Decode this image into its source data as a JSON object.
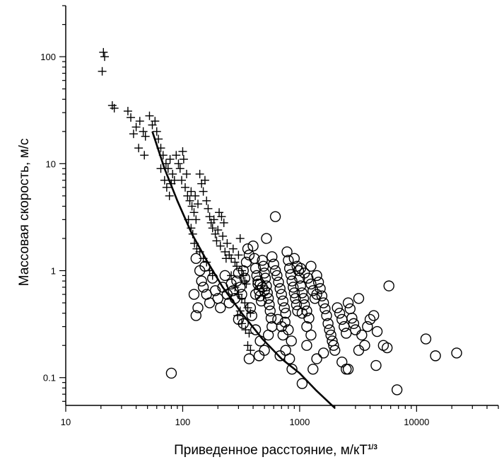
{
  "chart_data": {
    "type": "scatter",
    "x_scale": "log",
    "y_scale": "log",
    "xlim": [
      10,
      50000
    ],
    "ylim": [
      0.055,
      300
    ],
    "grid": false,
    "xlabel_main": "Приведенное расстояние, м/кТ",
    "xlabel_sup": "1/3",
    "ylabel": "Массовая скорость, м/с",
    "x_tick_labels": [
      {
        "value": 10,
        "label": "10"
      },
      {
        "value": 100,
        "label": "100"
      },
      {
        "value": 1000,
        "label": "1000"
      },
      {
        "value": 10000,
        "label": "10000"
      }
    ],
    "y_tick_labels": [
      {
        "value": 0.1,
        "label": "0.1"
      },
      {
        "value": 1,
        "label": "1"
      },
      {
        "value": 10,
        "label": "10"
      },
      {
        "value": 100,
        "label": "100"
      }
    ],
    "series": [
      {
        "marker": "plus",
        "points": [
          [
            21,
            110
          ],
          [
            21.5,
            100
          ],
          [
            20.5,
            73
          ],
          [
            25,
            35
          ],
          [
            26,
            33
          ],
          [
            34,
            31
          ],
          [
            36,
            27
          ],
          [
            40,
            22
          ],
          [
            43,
            25
          ],
          [
            46,
            20
          ],
          [
            48,
            18
          ],
          [
            52,
            28
          ],
          [
            55,
            23
          ],
          [
            58,
            25
          ],
          [
            60,
            20
          ],
          [
            38,
            19
          ],
          [
            42,
            14
          ],
          [
            47,
            12
          ],
          [
            62,
            17
          ],
          [
            65,
            14
          ],
          [
            68,
            12
          ],
          [
            72,
            10
          ],
          [
            75,
            9
          ],
          [
            78,
            11
          ],
          [
            82,
            8
          ],
          [
            85,
            7
          ],
          [
            88,
            12
          ],
          [
            92,
            10
          ],
          [
            95,
            9
          ],
          [
            98,
            7
          ],
          [
            100,
            13
          ],
          [
            102,
            11
          ],
          [
            105,
            6
          ],
          [
            108,
            8
          ],
          [
            110,
            5
          ],
          [
            65,
            9
          ],
          [
            70,
            7
          ],
          [
            73,
            6
          ],
          [
            77,
            5
          ],
          [
            80,
            6.5
          ],
          [
            115,
            4.5
          ],
          [
            118,
            5.5
          ],
          [
            120,
            4
          ],
          [
            125,
            3.5
          ],
          [
            128,
            5
          ],
          [
            130,
            3
          ],
          [
            135,
            4.2
          ],
          [
            140,
            8
          ],
          [
            145,
            6.5
          ],
          [
            150,
            5.5
          ],
          [
            155,
            7
          ],
          [
            160,
            4.5
          ],
          [
            165,
            3.8
          ],
          [
            170,
            3.2
          ],
          [
            175,
            2.8
          ],
          [
            112,
            3
          ],
          [
            118,
            2.5
          ],
          [
            122,
            2.2
          ],
          [
            126,
            1.8
          ],
          [
            132,
            1.6
          ],
          [
            180,
            2.5
          ],
          [
            185,
            3
          ],
          [
            190,
            2.2
          ],
          [
            195,
            1.9
          ],
          [
            200,
            2.4
          ],
          [
            210,
            1.7
          ],
          [
            220,
            2.1
          ],
          [
            230,
            1.5
          ],
          [
            240,
            1.8
          ],
          [
            250,
            1.4
          ],
          [
            260,
            1.3
          ],
          [
            270,
            1.6
          ],
          [
            280,
            1.2
          ],
          [
            290,
            1.1
          ],
          [
            300,
            1.4
          ],
          [
            140,
            1.5
          ],
          [
            150,
            1.3
          ],
          [
            160,
            1.2
          ],
          [
            170,
            1.0
          ],
          [
            180,
            0.9
          ],
          [
            310,
            2.0
          ],
          [
            320,
            1.0
          ],
          [
            330,
            0.9
          ],
          [
            340,
            0.8
          ],
          [
            350,
            0.75
          ],
          [
            205,
            3.5
          ],
          [
            215,
            3.2
          ],
          [
            225,
            2.8
          ],
          [
            235,
            1.3
          ],
          [
            260,
            0.9
          ],
          [
            280,
            0.7
          ],
          [
            300,
            0.6
          ],
          [
            320,
            0.55
          ],
          [
            340,
            0.5
          ],
          [
            360,
            0.45
          ],
          [
            380,
            0.4
          ],
          [
            320,
            0.32
          ],
          [
            345,
            0.28
          ],
          [
            370,
            0.26
          ],
          [
            360,
            0.2
          ],
          [
            380,
            0.18
          ],
          [
            295,
            0.38
          ],
          [
            310,
            0.42
          ]
        ]
      },
      {
        "marker": "circle",
        "points": [
          [
            80,
            0.11
          ],
          [
            1050,
            0.088
          ],
          [
            6800,
            0.077
          ],
          [
            12000,
            0.23
          ],
          [
            14500,
            0.16
          ],
          [
            22000,
            0.17
          ],
          [
            620,
            3.2
          ],
          [
            520,
            2.0
          ],
          [
            5800,
            0.72
          ],
          [
            130,
            1.3
          ],
          [
            140,
            1.0
          ],
          [
            150,
            0.7
          ],
          [
            160,
            0.6
          ],
          [
            170,
            0.5
          ],
          [
            135,
            0.45
          ],
          [
            130,
            0.38
          ],
          [
            125,
            0.6
          ],
          [
            145,
            0.8
          ],
          [
            155,
            1.1
          ],
          [
            180,
            0.85
          ],
          [
            190,
            0.65
          ],
          [
            200,
            0.55
          ],
          [
            210,
            0.45
          ],
          [
            220,
            0.7
          ],
          [
            230,
            0.9
          ],
          [
            240,
            0.6
          ],
          [
            250,
            0.5
          ],
          [
            260,
            0.75
          ],
          [
            270,
            0.65
          ],
          [
            280,
            0.55
          ],
          [
            290,
            0.8
          ],
          [
            300,
            0.95
          ],
          [
            310,
            0.7
          ],
          [
            320,
            0.6
          ],
          [
            330,
            1.0
          ],
          [
            340,
            0.85
          ],
          [
            350,
            1.2
          ],
          [
            360,
            1.6
          ],
          [
            370,
            1.4
          ],
          [
            380,
            0.45
          ],
          [
            390,
            0.38
          ],
          [
            400,
            1.7
          ],
          [
            410,
            1.3
          ],
          [
            420,
            1.05
          ],
          [
            430,
            0.9
          ],
          [
            440,
            0.75
          ],
          [
            450,
            0.65
          ],
          [
            460,
            0.58
          ],
          [
            470,
            0.52
          ],
          [
            480,
            1.25
          ],
          [
            490,
            1.1
          ],
          [
            500,
            0.95
          ],
          [
            510,
            0.85
          ],
          [
            520,
            0.72
          ],
          [
            530,
            0.62
          ],
          [
            540,
            0.55
          ],
          [
            550,
            0.48
          ],
          [
            560,
            0.42
          ],
          [
            570,
            0.36
          ],
          [
            580,
            1.35
          ],
          [
            600,
            1.15
          ],
          [
            620,
            1.0
          ],
          [
            640,
            0.9
          ],
          [
            660,
            0.78
          ],
          [
            680,
            0.68
          ],
          [
            700,
            0.6
          ],
          [
            720,
            0.52
          ],
          [
            740,
            0.45
          ],
          [
            760,
            0.4
          ],
          [
            780,
            1.5
          ],
          [
            800,
            1.25
          ],
          [
            820,
            1.05
          ],
          [
            840,
            0.92
          ],
          [
            860,
            0.8
          ],
          [
            880,
            0.7
          ],
          [
            900,
            0.62
          ],
          [
            920,
            0.55
          ],
          [
            940,
            0.48
          ],
          [
            960,
            0.42
          ],
          [
            980,
            1.0
          ],
          [
            1000,
            0.85
          ],
          [
            1020,
            0.72
          ],
          [
            1050,
            0.62
          ],
          [
            1080,
            0.55
          ],
          [
            1100,
            0.48
          ],
          [
            1150,
            0.42
          ],
          [
            1200,
            0.36
          ],
          [
            1250,
            0.75
          ],
          [
            1300,
            0.65
          ],
          [
            1350,
            0.55
          ],
          [
            1400,
            0.9
          ],
          [
            1450,
            0.78
          ],
          [
            1500,
            0.68
          ],
          [
            1550,
            0.58
          ],
          [
            1600,
            0.5
          ],
          [
            1650,
            0.44
          ],
          [
            1700,
            0.38
          ],
          [
            1750,
            0.32
          ],
          [
            1800,
            0.28
          ],
          [
            1850,
            0.25
          ],
          [
            1900,
            0.22
          ],
          [
            1950,
            0.2
          ],
          [
            2000,
            0.18
          ],
          [
            2100,
            0.45
          ],
          [
            2200,
            0.4
          ],
          [
            2300,
            0.35
          ],
          [
            2400,
            0.3
          ],
          [
            2500,
            0.26
          ],
          [
            2600,
            0.5
          ],
          [
            2700,
            0.44
          ],
          [
            2800,
            0.36
          ],
          [
            2900,
            0.32
          ],
          [
            3000,
            0.28
          ],
          [
            3200,
            0.55
          ],
          [
            3400,
            0.25
          ],
          [
            3600,
            0.2
          ],
          [
            3800,
            0.3
          ],
          [
            4000,
            0.35
          ],
          [
            4300,
            0.38
          ],
          [
            4600,
            0.27
          ],
          [
            5200,
            0.2
          ],
          [
            5600,
            0.19
          ],
          [
            680,
            0.16
          ],
          [
            720,
            0.25
          ],
          [
            760,
            0.18
          ],
          [
            820,
            0.15
          ],
          [
            860,
            0.12
          ],
          [
            1150,
            0.2
          ],
          [
            1300,
            0.12
          ],
          [
            1400,
            0.15
          ],
          [
            1600,
            0.17
          ],
          [
            2300,
            0.14
          ],
          [
            2500,
            0.12
          ],
          [
            2600,
            0.12
          ],
          [
            3200,
            0.18
          ],
          [
            4500,
            0.13
          ],
          [
            420,
            0.28
          ],
          [
            460,
            0.22
          ],
          [
            500,
            0.18
          ],
          [
            540,
            0.25
          ],
          [
            580,
            0.3
          ],
          [
            450,
            0.16
          ],
          [
            370,
            0.15
          ],
          [
            330,
            0.32
          ],
          [
            300,
            0.35
          ],
          [
            1020,
            1.05
          ],
          [
            1100,
            0.95
          ],
          [
            1180,
            0.85
          ],
          [
            1250,
            1.1
          ],
          [
            1400,
            0.6
          ],
          [
            900,
            1.3
          ],
          [
            950,
            1.1
          ],
          [
            1050,
            0.4
          ],
          [
            1150,
            0.3
          ],
          [
            1250,
            0.25
          ],
          [
            650,
            0.35
          ],
          [
            700,
            0.3
          ],
          [
            750,
            0.33
          ],
          [
            800,
            0.28
          ],
          [
            850,
            0.22
          ],
          [
            480,
            0.7
          ],
          [
            500,
            0.65
          ],
          [
            460,
            0.75
          ],
          [
            440,
            0.8
          ],
          [
            420,
            0.6
          ]
        ]
      },
      {
        "marker": "line",
        "points": [
          [
            55,
            20
          ],
          [
            70,
            9
          ],
          [
            90,
            4.5
          ],
          [
            120,
            2.2
          ],
          [
            160,
            1.25
          ],
          [
            220,
            0.7
          ],
          [
            320,
            0.4
          ],
          [
            480,
            0.23
          ],
          [
            700,
            0.15
          ],
          [
            1000,
            0.11
          ],
          [
            1400,
            0.075
          ],
          [
            2000,
            0.052
          ]
        ]
      }
    ]
  }
}
